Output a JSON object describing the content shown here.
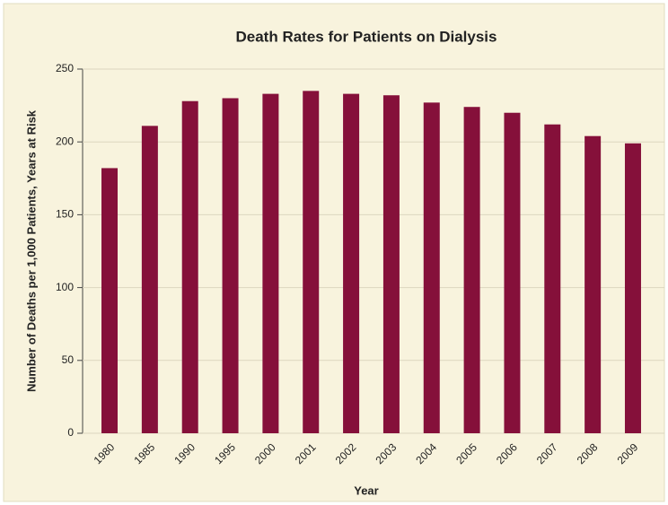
{
  "chart_data": {
    "type": "bar",
    "title": "Death Rates for Patients on Dialysis",
    "x_label": "Year",
    "y_label": "Number of Deaths per 1,000 Patients, Years at Risk",
    "categories": [
      "1980",
      "1985",
      "1990",
      "1995",
      "2000",
      "2001",
      "2002",
      "2003",
      "2004",
      "2005",
      "2006",
      "2007",
      "2008",
      "2009"
    ],
    "values": [
      182,
      211,
      228,
      230,
      233,
      235,
      233,
      232,
      227,
      224,
      220,
      212,
      204,
      199
    ],
    "color": "#85103a",
    "ylim": [
      0,
      250
    ],
    "yticks": [
      0,
      50,
      100,
      150,
      200,
      250
    ],
    "grid": true
  }
}
